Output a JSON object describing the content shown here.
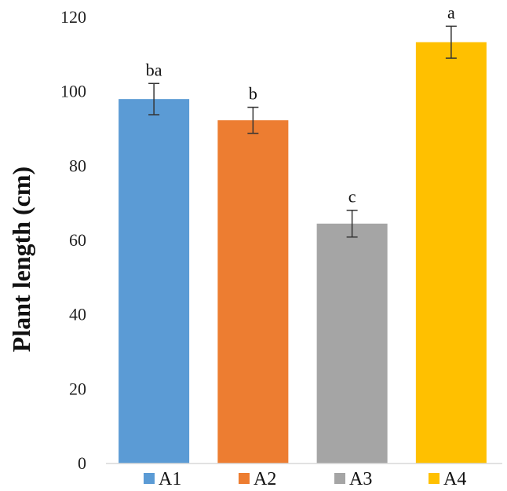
{
  "chart_data": {
    "type": "bar",
    "categories": [
      "A1",
      "A2",
      "A3",
      "A4"
    ],
    "values": [
      98,
      92.3,
      64.5,
      113.3
    ],
    "errors": [
      4.2,
      3.5,
      3.6,
      4.3
    ],
    "significance": [
      "ba",
      "b",
      "c",
      "a"
    ],
    "colors": [
      "#5B9BD5",
      "#ED7D31",
      "#A5A5A5",
      "#FFC000"
    ],
    "ylabel": "Plant length (cm)",
    "xlabel": "",
    "title": "",
    "ylim": [
      0,
      120
    ],
    "yticks": [
      "0",
      "20",
      "40",
      "60",
      "80",
      "100",
      "120"
    ],
    "grid": false,
    "legend": {
      "position": "bottom",
      "entries": [
        "A1",
        "A2",
        "A3",
        "A4"
      ]
    }
  }
}
